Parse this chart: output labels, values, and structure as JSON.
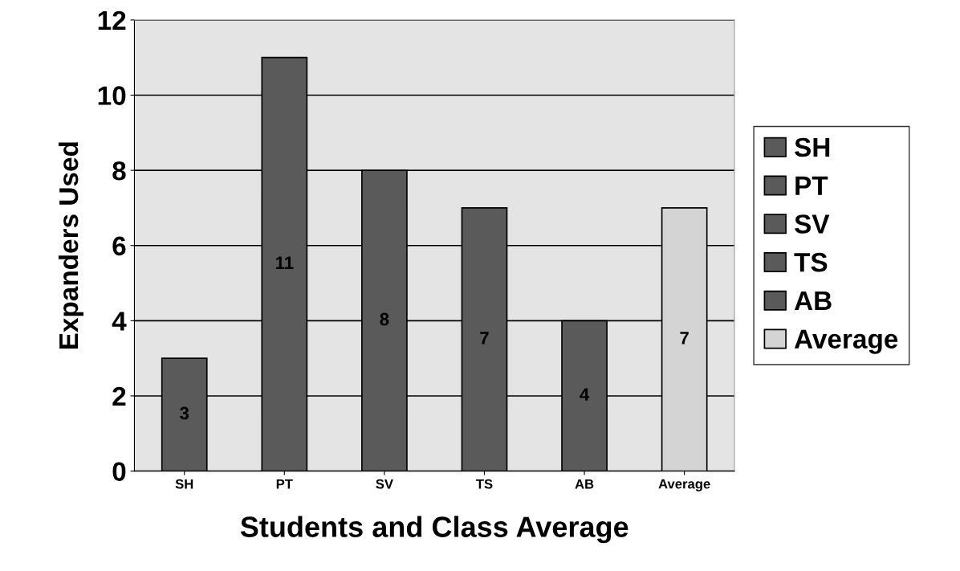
{
  "chart_data": {
    "type": "bar",
    "xlabel": "Students and Class Average",
    "ylabel": "Expanders Used",
    "categories": [
      "SH",
      "PT",
      "SV",
      "TS",
      "AB",
      "Average"
    ],
    "series": [
      {
        "name": "SH",
        "color": "#5a5a5a",
        "values": [
          3,
          null,
          null,
          null,
          null,
          null
        ]
      },
      {
        "name": "PT",
        "color": "#5a5a5a",
        "values": [
          null,
          11,
          null,
          null,
          null,
          null
        ]
      },
      {
        "name": "SV",
        "color": "#5a5a5a",
        "values": [
          null,
          null,
          8,
          null,
          null,
          null
        ]
      },
      {
        "name": "TS",
        "color": "#5a5a5a",
        "values": [
          null,
          null,
          null,
          7,
          null,
          null
        ]
      },
      {
        "name": "AB",
        "color": "#5a5a5a",
        "values": [
          null,
          null,
          null,
          null,
          4,
          null
        ]
      },
      {
        "name": "Average",
        "color": "#d4d4d4",
        "values": [
          null,
          null,
          null,
          null,
          null,
          7
        ]
      }
    ],
    "ylim": [
      0,
      12
    ],
    "yticks": [
      0,
      2,
      4,
      6,
      8,
      10,
      12
    ],
    "grid": "y",
    "legend": "right",
    "data_labels": true
  }
}
